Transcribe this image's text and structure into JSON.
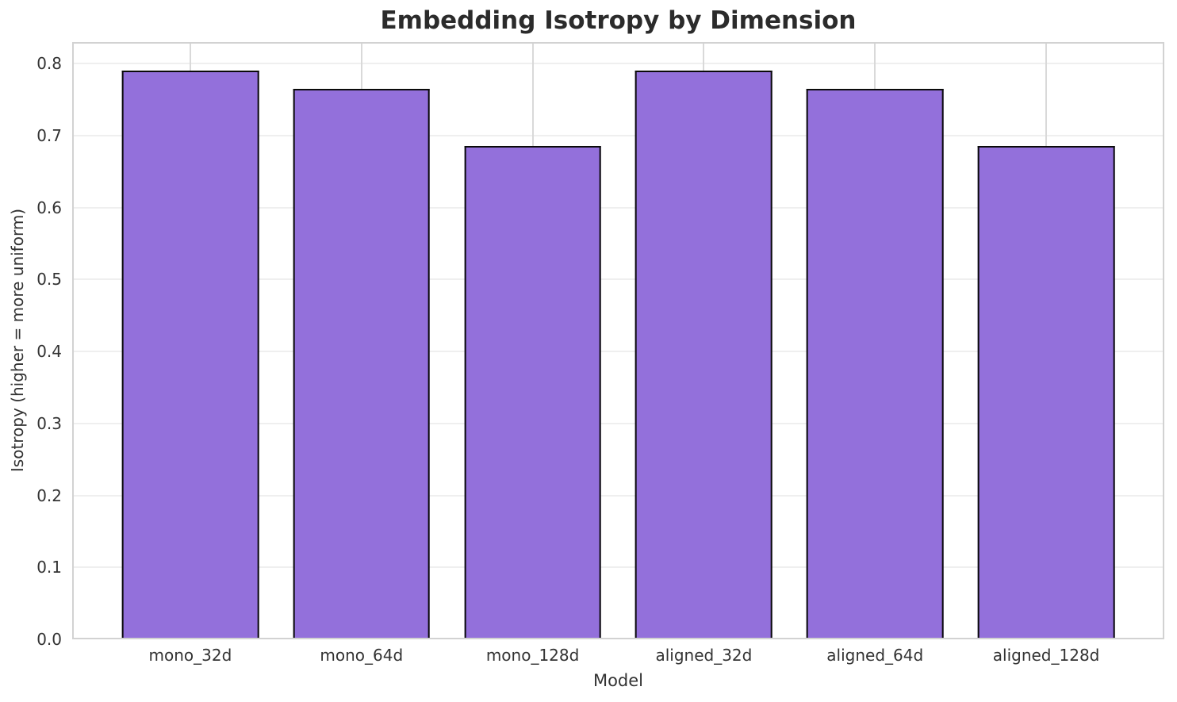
{
  "chart_data": {
    "type": "bar",
    "title": "Embedding Isotropy by Dimension",
    "xlabel": "Model",
    "ylabel": "Isotropy (higher = more uniform)",
    "categories": [
      "mono_32d",
      "mono_64d",
      "mono_128d",
      "aligned_32d",
      "aligned_64d",
      "aligned_128d"
    ],
    "values": [
      0.79,
      0.765,
      0.686,
      0.79,
      0.765,
      0.686
    ],
    "yticks": [
      0.0,
      0.1,
      0.2,
      0.3,
      0.4,
      0.5,
      0.6,
      0.7,
      0.8
    ],
    "ytick_labels": [
      "0.0",
      "0.1",
      "0.2",
      "0.3",
      "0.4",
      "0.5",
      "0.6",
      "0.7",
      "0.8"
    ],
    "ylim": [
      0,
      0.83
    ],
    "xlim": [
      -0.69,
      5.69
    ],
    "bar_width_units": 0.8,
    "grid": "both",
    "legend": "none",
    "colors": {
      "bar_fill": "#9370DB",
      "bar_edge": "#0a0a0a",
      "grid_horizontal": "#efefef",
      "grid_vertical": "#d9d9d9",
      "spine": "#d2d2d2",
      "title_text": "#2b2b2b",
      "axis_text": "#333333",
      "background": "#ffffff"
    }
  }
}
